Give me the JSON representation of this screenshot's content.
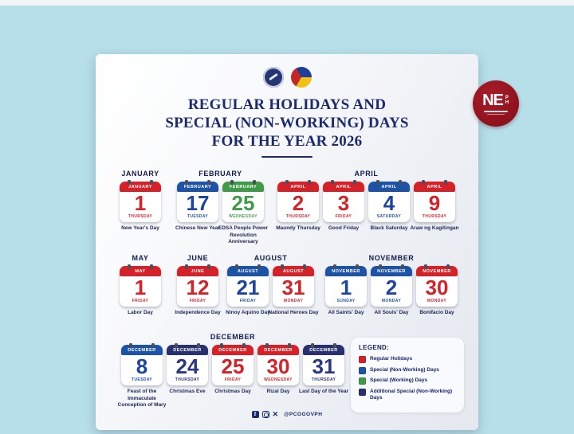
{
  "page": {
    "background": "#b7dfe9"
  },
  "header": {
    "title_lines": [
      "REGULAR HOLIDAYS AND",
      "SPECIAL (NON-WORKING) DAYS",
      "FOR THE YEAR 2026"
    ],
    "logos": [
      "pco-seal",
      "bagong-pilipinas-logo"
    ]
  },
  "badge": {
    "n": "N",
    "e": "E",
    "ph": "PH"
  },
  "colors": {
    "regular": {
      "band": "#d62128",
      "num": "#d62128",
      "wd": "#d6222a"
    },
    "special_nonworking": {
      "band": "#1d53a6",
      "num": "#1c44a0",
      "wd": "#1d53a6"
    },
    "special_working": {
      "band": "#3f9b48",
      "num": "#3f9b48",
      "wd": "#43a04c"
    },
    "additional_special": {
      "band": "#28316e",
      "num": "#2a3784",
      "wd": "#28316e"
    }
  },
  "calendar": {
    "rows": [
      {
        "groups": [
          {
            "month": "JANUARY",
            "holidays": [
              {
                "day": "1",
                "weekday": "THURSDAY",
                "caption": "New Year's Day",
                "type": "regular"
              }
            ]
          },
          {
            "month": "FEBRUARY",
            "holidays": [
              {
                "day": "17",
                "weekday": "TUESDAY",
                "caption": "Chinese New Year",
                "type": "special_nonworking"
              },
              {
                "day": "25",
                "weekday": "WEDNESDAY",
                "caption": "EDSA People Power Revolution Anniversary",
                "type": "special_working"
              }
            ]
          },
          {
            "month": "APRIL",
            "holidays": [
              {
                "day": "2",
                "weekday": "THURSDAY",
                "caption": "Maundy Thursday",
                "type": "regular"
              },
              {
                "day": "3",
                "weekday": "FRIDAY",
                "caption": "Good Friday",
                "type": "regular"
              },
              {
                "day": "4",
                "weekday": "SATURDAY",
                "caption": "Black Saturday",
                "type": "special_nonworking"
              },
              {
                "day": "9",
                "weekday": "THURSDAY",
                "caption": "Araw ng Kagitingan",
                "type": "regular"
              }
            ]
          }
        ]
      },
      {
        "groups": [
          {
            "month": "MAY",
            "holidays": [
              {
                "day": "1",
                "weekday": "FRIDAY",
                "caption": "Labor Day",
                "type": "regular"
              }
            ]
          },
          {
            "month": "JUNE",
            "holidays": [
              {
                "day": "12",
                "weekday": "FRIDAY",
                "caption": "Independence Day",
                "type": "regular"
              }
            ]
          },
          {
            "month": "AUGUST",
            "holidays": [
              {
                "day": "21",
                "weekday": "FRIDAY",
                "caption": "Ninoy Aquino Day",
                "type": "special_nonworking"
              },
              {
                "day": "31",
                "weekday": "MONDAY",
                "caption": "National Heroes Day",
                "type": "regular"
              }
            ]
          },
          {
            "month": "NOVEMBER",
            "holidays": [
              {
                "day": "1",
                "weekday": "SUNDAY",
                "caption": "All Saints' Day",
                "type": "special_nonworking"
              },
              {
                "day": "2",
                "weekday": "MONDAY",
                "caption": "All Souls' Day",
                "type": "special_nonworking"
              },
              {
                "day": "30",
                "weekday": "MONDAY",
                "caption": "Bonifacio Day",
                "type": "regular"
              }
            ]
          }
        ]
      },
      {
        "groups": [
          {
            "month": "DECEMBER",
            "holidays": [
              {
                "day": "8",
                "weekday": "TUESDAY",
                "caption": "Feast of the Immaculate Conception of Mary",
                "type": "special_nonworking"
              },
              {
                "day": "24",
                "weekday": "THURSDAY",
                "caption": "Christmas Eve",
                "type": "additional_special"
              },
              {
                "day": "25",
                "weekday": "FRIDAY",
                "caption": "Christmas Day",
                "type": "regular"
              },
              {
                "day": "30",
                "weekday": "WEDNESDAY",
                "caption": "Rizal Day",
                "type": "regular"
              },
              {
                "day": "31",
                "weekday": "THURSDAY",
                "caption": "Last Day of the Year",
                "type": "additional_special"
              }
            ]
          }
        ]
      }
    ]
  },
  "legend": {
    "title": "LEGEND:",
    "items": [
      {
        "label": "Regular Holidays",
        "type": "regular"
      },
      {
        "label": "Special (Non-Working) Days",
        "type": "special_nonworking"
      },
      {
        "label": "Special (Working) Days",
        "type": "special_working"
      },
      {
        "label": "Additional Special (Non-Working) Days",
        "type": "additional_special"
      }
    ]
  },
  "footer": {
    "handle": "@PCOGOVPH",
    "icons": [
      "facebook",
      "instagram",
      "x"
    ]
  }
}
